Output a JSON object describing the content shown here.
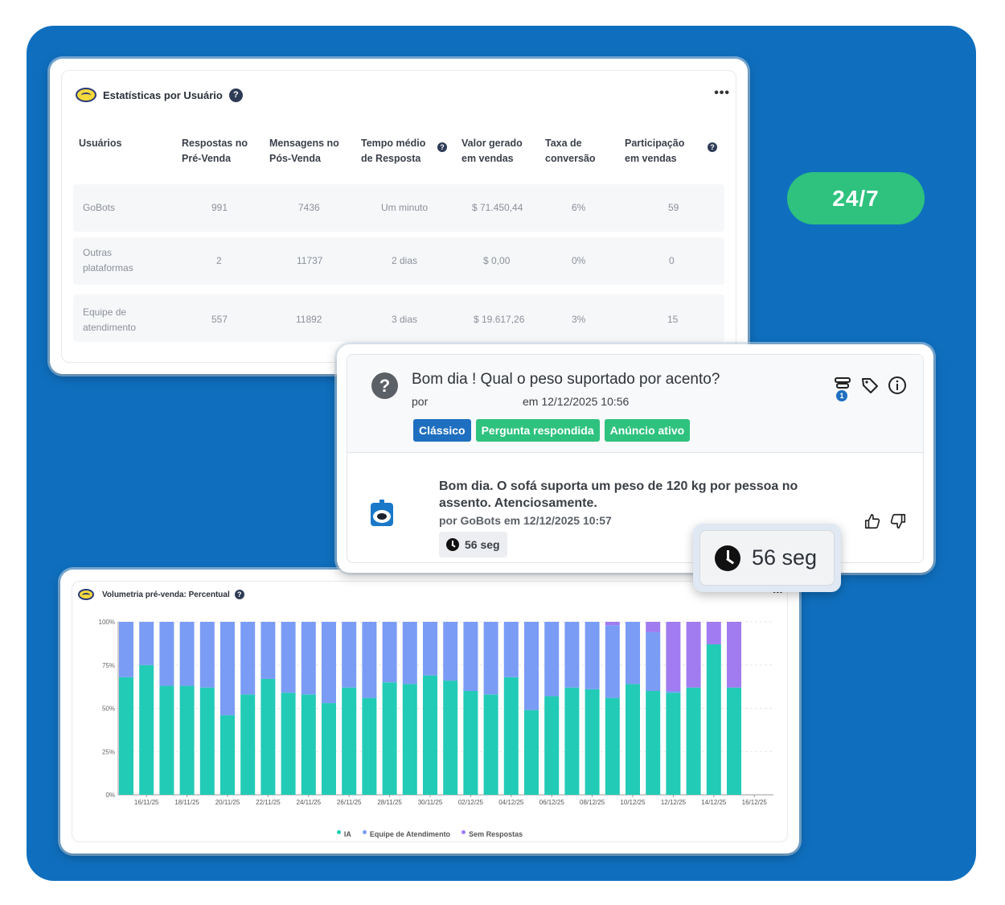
{
  "badge_247": "24/7",
  "stats": {
    "title": "Estatísticas por Usuário",
    "help": "?",
    "more": "•••",
    "headers": [
      {
        "line1": "Usuários",
        "line2": ""
      },
      {
        "line1": "Respostas no",
        "line2": "Pré-Venda"
      },
      {
        "line1": "Mensagens no",
        "line2": "Pós-Venda"
      },
      {
        "line1": "Tempo médio",
        "line2": "de Resposta"
      },
      {
        "line1": "Valor gerado",
        "line2": "em vendas"
      },
      {
        "line1": "Taxa de",
        "line2": "conversão"
      },
      {
        "line1": "Participação",
        "line2": "em vendas"
      }
    ],
    "rows": [
      {
        "user1": "GoBots",
        "user2": "",
        "pre": "991",
        "pos": "7436",
        "tempo": "Um minuto",
        "valor": "$ 71.450,44",
        "taxa": "6%",
        "part": "59"
      },
      {
        "user1": "Outras",
        "user2": "plataformas",
        "pre": "2",
        "pos": "11737",
        "tempo": "2 dias",
        "valor": "$ 0,00",
        "taxa": "0%",
        "part": "0"
      },
      {
        "user1": "Equipe de",
        "user2": "atendimento",
        "pre": "557",
        "pos": "11892",
        "tempo": "3 dias",
        "valor": "$ 19.617,26",
        "taxa": "3%",
        "part": "15"
      }
    ]
  },
  "question": {
    "text": "Bom dia ! Qual o peso suportado por acento?",
    "by": "por",
    "date": "em 12/12/2025 10:56",
    "filter_count": "1",
    "tags": [
      {
        "label": "Clássico",
        "color": "#1f6fc0"
      },
      {
        "label": "Pergunta respondida",
        "color": "#2ec27e"
      },
      {
        "label": "Anúncio ativo",
        "color": "#2ec27e"
      }
    ],
    "answer_line1": "Bom dia. O sofá suporta um peso de 120 kg por pessoa no",
    "answer_line2": "assento.  Atenciosamente.",
    "answer_meta": "por GoBots em 12/12/2025 10:57",
    "response_time": "56 seg"
  },
  "timer_callout": "56 seg",
  "chart": {
    "title": "Volumetria pré-venda: Percentual",
    "help": "?",
    "more": "•••",
    "legend": [
      {
        "label": "IA",
        "color": "#22cbb6"
      },
      {
        "label": "Equipe de Atendimento",
        "color": "#7b9cf5"
      },
      {
        "label": "Sem Respostas",
        "color": "#a07cf0"
      }
    ]
  },
  "chart_data": {
    "type": "bar",
    "stacked": true,
    "title": "Volumetria pré-venda: Percentual",
    "ylim": [
      0,
      100
    ],
    "yticks": [
      "0%",
      "25%",
      "50%",
      "75%",
      "100%"
    ],
    "xtick_labels": [
      "16/11/25",
      "18/11/25",
      "20/11/25",
      "22/11/25",
      "24/11/25",
      "26/11/25",
      "28/11/25",
      "30/11/25",
      "02/12/25",
      "04/12/25",
      "06/12/25",
      "08/12/25",
      "10/12/25",
      "12/12/25",
      "14/12/25",
      "16/12/25"
    ],
    "series": [
      {
        "name": "IA",
        "color": "#22cbb6",
        "values": [
          68,
          75,
          63,
          63,
          62,
          46,
          58,
          67,
          59,
          58,
          53,
          62,
          56,
          65,
          64,
          69,
          66,
          60,
          58,
          68,
          49,
          57,
          62,
          61,
          56,
          64,
          60,
          59,
          62,
          87,
          62
        ]
      },
      {
        "name": "Equipe de Atendimento",
        "color": "#7b9cf5",
        "values": [
          32,
          25,
          37,
          37,
          38,
          54,
          42,
          33,
          41,
          42,
          47,
          38,
          44,
          35,
          36,
          31,
          34,
          40,
          42,
          32,
          51,
          43,
          38,
          39,
          42,
          36,
          34,
          1,
          0,
          0,
          0
        ]
      },
      {
        "name": "Sem Respostas",
        "color": "#a07cf0",
        "values": [
          0,
          0,
          0,
          0,
          0,
          0,
          0,
          0,
          0,
          0,
          0,
          0,
          0,
          0,
          0,
          0,
          0,
          0,
          0,
          0,
          0,
          0,
          0,
          0,
          2,
          0,
          6,
          40,
          38,
          13,
          38
        ]
      }
    ]
  }
}
